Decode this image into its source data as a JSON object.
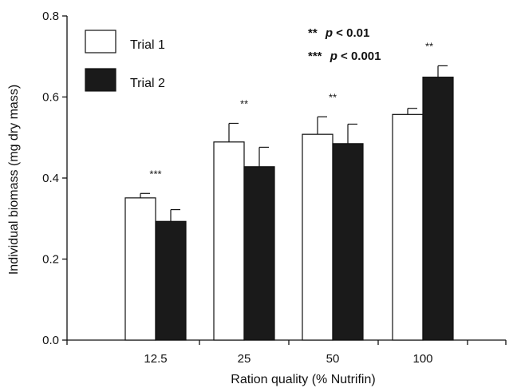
{
  "chart_data": {
    "type": "bar",
    "xlabel": "Ration quality (% Nutrifin)",
    "ylabel": "Individual biomass (mg dry mass)",
    "ylim": [
      0,
      0.8
    ],
    "yticks": [
      "0.0",
      "0.2",
      "0.4",
      "0.6",
      "0.8"
    ],
    "categories": [
      "12.5",
      "25",
      "50",
      "100"
    ],
    "series": [
      {
        "name": "Trial 1",
        "color": "#ffffff",
        "values": [
          0.351,
          0.489,
          0.508,
          0.557
        ],
        "errors": [
          0.011,
          0.046,
          0.043,
          0.015
        ]
      },
      {
        "name": "Trial 2",
        "color": "#1a1a1a",
        "values": [
          0.293,
          0.428,
          0.485,
          0.649
        ],
        "errors": [
          0.029,
          0.048,
          0.048,
          0.028
        ]
      }
    ],
    "significance": [
      "***",
      "**",
      "**",
      "**"
    ],
    "notes": [
      {
        "stars": "**",
        "text": "p <  0.01"
      },
      {
        "stars": "***",
        "text": "p < 0.001"
      }
    ],
    "legend_position": "top-left",
    "grid": false
  }
}
